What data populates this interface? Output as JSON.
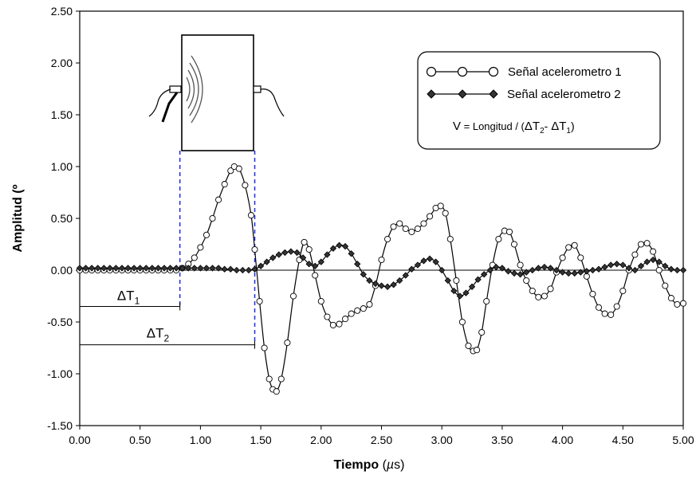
{
  "chart_data": {
    "type": "line",
    "xlabel": {
      "main": "Tiempo",
      "unit_open": " (",
      "unit_mu": "µ",
      "unit_rest": "s)"
    },
    "ylabel": "Amplitud (º",
    "xlim": [
      0,
      5
    ],
    "ylim": [
      -1.5,
      2.5
    ],
    "xticks": [
      0,
      0.5,
      1,
      1.5,
      2,
      2.5,
      3,
      3.5,
      4,
      4.5,
      5
    ],
    "xtick_labels": [
      "0.00",
      "0.50",
      "1.00",
      "1.50",
      "2.00",
      "2.50",
      "3.00",
      "3.50",
      "4.00",
      "4.50",
      "5.00"
    ],
    "yticks": [
      -1.5,
      -1,
      -0.5,
      0,
      0.5,
      1,
      1.5,
      2,
      2.5
    ],
    "ytick_labels": [
      "-1.50",
      "-1.00",
      "-0.50",
      "0.00",
      "0.50",
      "1.00",
      "1.50",
      "2.00",
      "2.50"
    ],
    "grid": false,
    "legend_position": "top-right",
    "series": [
      {
        "name": "Señal acelerometro 1",
        "marker": "circle",
        "x": [
          0.0,
          0.05,
          0.1,
          0.15,
          0.2,
          0.25,
          0.3,
          0.35,
          0.4,
          0.45,
          0.5,
          0.55,
          0.6,
          0.65,
          0.7,
          0.75,
          0.8,
          0.85,
          0.9,
          0.95,
          1.0,
          1.05,
          1.1,
          1.15,
          1.2,
          1.25,
          1.28,
          1.32,
          1.37,
          1.42,
          1.45,
          1.49,
          1.53,
          1.57,
          1.6,
          1.63,
          1.67,
          1.72,
          1.77,
          1.82,
          1.86,
          1.9,
          1.95,
          2.0,
          2.05,
          2.1,
          2.15,
          2.2,
          2.25,
          2.3,
          2.35,
          2.4,
          2.45,
          2.5,
          2.55,
          2.6,
          2.65,
          2.7,
          2.75,
          2.8,
          2.85,
          2.9,
          2.95,
          2.99,
          3.03,
          3.07,
          3.12,
          3.17,
          3.22,
          3.26,
          3.29,
          3.33,
          3.37,
          3.42,
          3.47,
          3.52,
          3.56,
          3.6,
          3.65,
          3.7,
          3.75,
          3.8,
          3.85,
          3.9,
          3.95,
          4.0,
          4.05,
          4.1,
          4.15,
          4.2,
          4.25,
          4.3,
          4.35,
          4.4,
          4.45,
          4.5,
          4.55,
          4.6,
          4.65,
          4.7,
          4.75,
          4.8,
          4.85,
          4.9,
          4.95,
          5.0
        ],
        "y": [
          0.0,
          0.0,
          0.0,
          0.0,
          0.0,
          0.0,
          0.0,
          0.0,
          0.0,
          0.0,
          0.0,
          0.0,
          0.0,
          0.0,
          0.0,
          0.0,
          0.0,
          0.02,
          0.06,
          0.12,
          0.22,
          0.34,
          0.5,
          0.68,
          0.83,
          0.96,
          1.0,
          0.98,
          0.82,
          0.53,
          0.2,
          -0.3,
          -0.75,
          -1.05,
          -1.15,
          -1.17,
          -1.05,
          -0.7,
          -0.25,
          0.1,
          0.27,
          0.2,
          -0.05,
          -0.3,
          -0.45,
          -0.53,
          -0.52,
          -0.47,
          -0.42,
          -0.39,
          -0.37,
          -0.33,
          -0.15,
          0.1,
          0.3,
          0.42,
          0.45,
          0.4,
          0.37,
          0.4,
          0.45,
          0.52,
          0.6,
          0.62,
          0.55,
          0.3,
          -0.1,
          -0.5,
          -0.73,
          -0.78,
          -0.77,
          -0.6,
          -0.3,
          0.05,
          0.3,
          0.38,
          0.37,
          0.25,
          0.05,
          -0.1,
          -0.2,
          -0.26,
          -0.25,
          -0.18,
          -0.02,
          0.12,
          0.22,
          0.24,
          0.12,
          -0.06,
          -0.23,
          -0.36,
          -0.42,
          -0.43,
          -0.35,
          -0.2,
          0.0,
          0.15,
          0.25,
          0.26,
          0.18,
          0.0,
          -0.15,
          -0.27,
          -0.33,
          -0.32
        ]
      },
      {
        "name": "Señal acelerometro 2",
        "marker": "diamond",
        "x": [
          0.0,
          0.05,
          0.1,
          0.15,
          0.2,
          0.25,
          0.3,
          0.35,
          0.4,
          0.45,
          0.5,
          0.55,
          0.6,
          0.65,
          0.7,
          0.75,
          0.8,
          0.85,
          0.9,
          0.95,
          1.0,
          1.05,
          1.1,
          1.15,
          1.2,
          1.25,
          1.3,
          1.35,
          1.4,
          1.45,
          1.5,
          1.55,
          1.6,
          1.65,
          1.7,
          1.75,
          1.8,
          1.85,
          1.9,
          1.95,
          2.0,
          2.05,
          2.1,
          2.15,
          2.2,
          2.25,
          2.3,
          2.35,
          2.4,
          2.45,
          2.5,
          2.55,
          2.6,
          2.65,
          2.7,
          2.75,
          2.8,
          2.85,
          2.9,
          2.95,
          3.0,
          3.05,
          3.1,
          3.15,
          3.2,
          3.25,
          3.3,
          3.35,
          3.4,
          3.45,
          3.5,
          3.55,
          3.6,
          3.65,
          3.7,
          3.75,
          3.8,
          3.85,
          3.9,
          3.95,
          4.0,
          4.05,
          4.1,
          4.15,
          4.2,
          4.25,
          4.3,
          4.35,
          4.4,
          4.45,
          4.5,
          4.55,
          4.6,
          4.65,
          4.7,
          4.75,
          4.8,
          4.85,
          4.9,
          4.95,
          5.0
        ],
        "y": [
          0.02,
          0.02,
          0.02,
          0.02,
          0.02,
          0.02,
          0.02,
          0.02,
          0.02,
          0.02,
          0.02,
          0.02,
          0.02,
          0.02,
          0.02,
          0.02,
          0.02,
          0.02,
          0.02,
          0.02,
          0.02,
          0.02,
          0.02,
          0.02,
          0.01,
          0.01,
          0.0,
          0.0,
          0.0,
          0.01,
          0.04,
          0.08,
          0.12,
          0.15,
          0.17,
          0.18,
          0.17,
          0.12,
          0.06,
          0.04,
          0.08,
          0.15,
          0.21,
          0.24,
          0.23,
          0.16,
          0.06,
          -0.04,
          -0.1,
          -0.13,
          -0.15,
          -0.16,
          -0.14,
          -0.1,
          -0.05,
          0.01,
          0.05,
          0.09,
          0.11,
          0.08,
          0.0,
          -0.1,
          -0.2,
          -0.25,
          -0.22,
          -0.16,
          -0.09,
          -0.04,
          0.0,
          0.03,
          0.02,
          -0.01,
          -0.03,
          -0.04,
          -0.02,
          0.0,
          0.02,
          0.03,
          0.02,
          0.0,
          -0.02,
          -0.03,
          -0.03,
          -0.02,
          -0.01,
          0.0,
          0.01,
          0.03,
          0.05,
          0.06,
          0.05,
          0.02,
          0.0,
          0.04,
          0.08,
          0.1,
          0.08,
          0.04,
          0.01,
          0.0,
          0.0
        ]
      }
    ],
    "markers": {
      "dt1_x": 0.83,
      "dt2_x": 1.45,
      "dt1_y": -0.35,
      "dt2_y": -0.72,
      "dt1_label": {
        "base": "ΔT",
        "sub": "1"
      },
      "dt2_label": {
        "base": "ΔT",
        "sub": "2"
      }
    },
    "formula": {
      "lhs": "V",
      "eq": " = ",
      "text": "Longitud / (",
      "t2": "ΔT",
      "t2_sub": "2",
      "minus": "- ",
      "t1": "ΔT",
      "t1_sub": "1",
      "close": ")"
    }
  },
  "colors": {
    "series": "#000000",
    "guides": "#1f2fe0",
    "background": "#ffffff"
  }
}
